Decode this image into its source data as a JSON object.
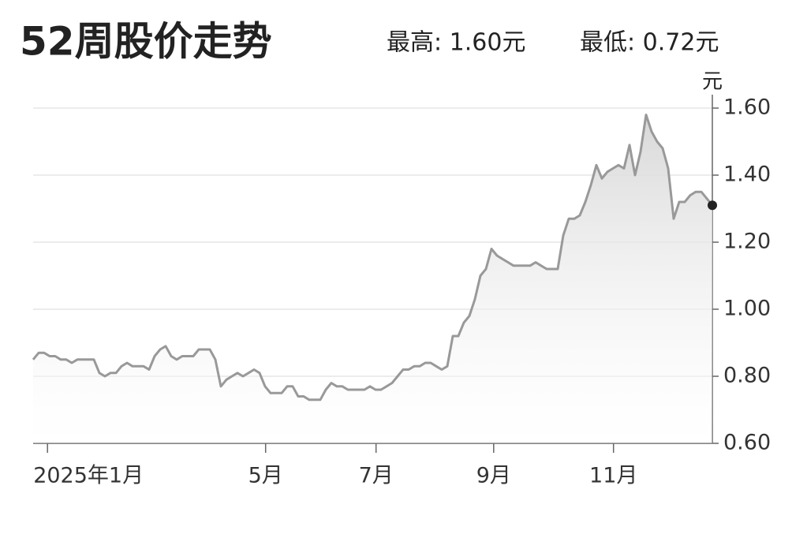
{
  "chart_data": {
    "type": "line",
    "title": "52周股价走势",
    "annotations": [
      "最高: 1.60元",
      "最低: 0.72元"
    ],
    "y_unit": "元",
    "color": "#999999",
    "values": [
      0.85,
      0.87,
      0.87,
      0.86,
      0.86,
      0.85,
      0.85,
      0.84,
      0.85,
      0.85,
      0.85,
      0.85,
      0.81,
      0.8,
      0.81,
      0.81,
      0.83,
      0.84,
      0.83,
      0.83,
      0.83,
      0.82,
      0.86,
      0.88,
      0.89,
      0.86,
      0.85,
      0.86,
      0.86,
      0.86,
      0.88,
      0.88,
      0.88,
      0.85,
      0.77,
      0.79,
      0.8,
      0.81,
      0.8,
      0.81,
      0.82,
      0.81,
      0.77,
      0.75,
      0.75,
      0.75,
      0.77,
      0.77,
      0.74,
      0.74,
      0.73,
      0.73,
      0.73,
      0.76,
      0.78,
      0.77,
      0.77,
      0.76,
      0.76,
      0.76,
      0.76,
      0.77,
      0.76,
      0.76,
      0.77,
      0.78,
      0.8,
      0.82,
      0.82,
      0.83,
      0.83,
      0.84,
      0.84,
      0.83,
      0.82,
      0.83,
      0.92,
      0.92,
      0.96,
      0.98,
      1.03,
      1.1,
      1.12,
      1.18,
      1.16,
      1.15,
      1.14,
      1.13,
      1.13,
      1.13,
      1.13,
      1.14,
      1.13,
      1.12,
      1.12,
      1.12,
      1.22,
      1.27,
      1.27,
      1.28,
      1.32,
      1.37,
      1.43,
      1.39,
      1.41,
      1.42,
      1.43,
      1.42,
      1.49,
      1.4,
      1.47,
      1.58,
      1.53,
      1.5,
      1.48,
      1.42,
      1.27,
      1.32,
      1.32,
      1.34,
      1.35,
      1.35,
      1.33,
      1.31
    ],
    "xlim": [
      0,
      123
    ],
    "xticks": [
      {
        "value": 2.6,
        "label": "2025年1月"
      },
      {
        "value": 42.1,
        "label": "5月"
      },
      {
        "value": 62.1,
        "label": "7月"
      },
      {
        "value": 83.4,
        "label": "9月"
      },
      {
        "value": 105.1,
        "label": "11月"
      }
    ],
    "ylim": [
      0.6,
      1.6
    ],
    "yticks": [
      {
        "value": 0.6,
        "label": "0.60"
      },
      {
        "value": 0.8,
        "label": "0.80"
      },
      {
        "value": 1.0,
        "label": "1.00"
      },
      {
        "value": 1.2,
        "label": "1.20"
      },
      {
        "value": 1.4,
        "label": "1.40"
      },
      {
        "value": 1.6,
        "label": "1.60"
      }
    ],
    "grid": true,
    "area": true,
    "end_marker": true
  }
}
